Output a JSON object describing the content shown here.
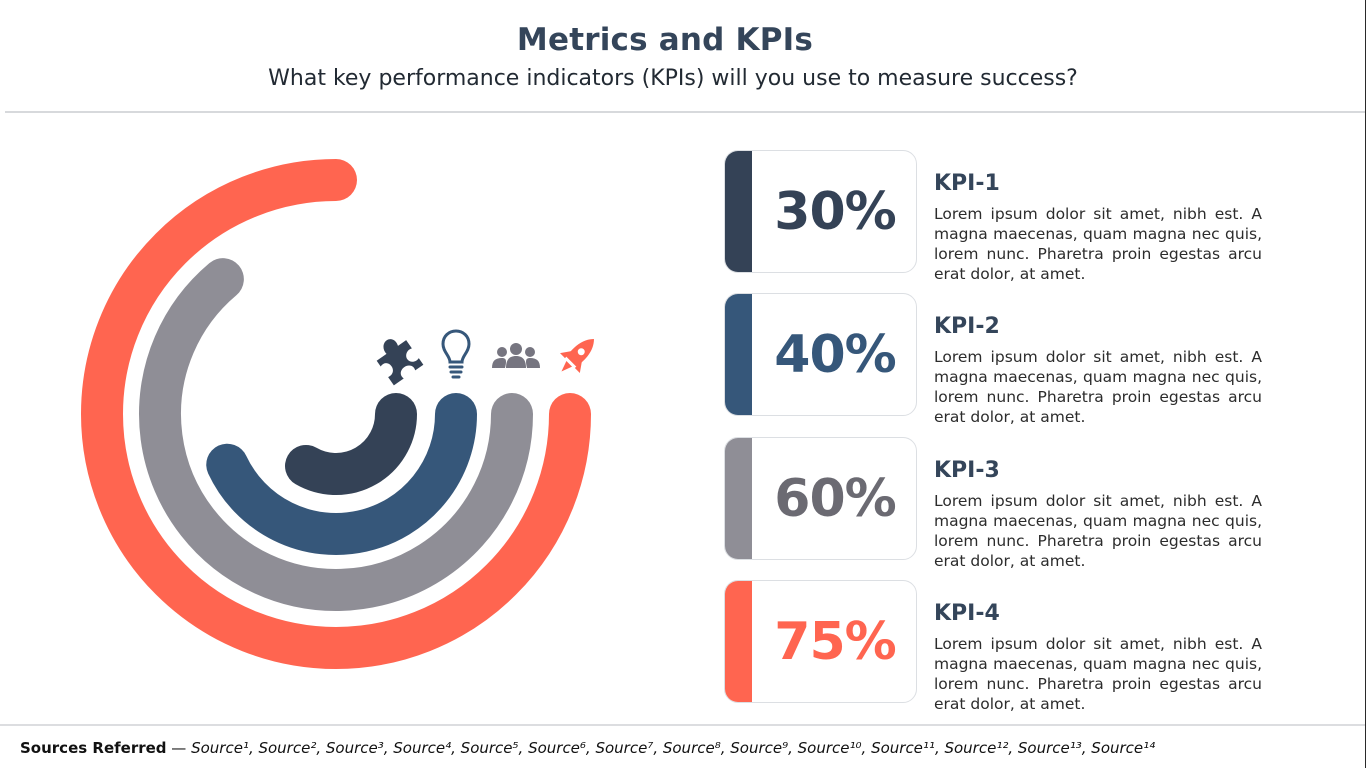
{
  "header": {
    "title": "Metrics and KPIs",
    "subtitle": "What key performance indicators (KPIs) will you use to measure success?"
  },
  "colors": {
    "kpi1": "#344256",
    "kpi2": "#36577a",
    "kpi3": "#8f8e96",
    "kpi4": "#ff6550"
  },
  "icons": [
    "puzzle-icon",
    "lightbulb-icon",
    "team-icon",
    "rocket-icon"
  ],
  "kpis": [
    {
      "value": "30%",
      "label": "KPI-1",
      "description": "Lorem ipsum dolor sit amet, nibh est. A magna maecenas, quam magna nec quis, lorem nunc. Pharetra proin egestas arcu erat dolor, at amet.",
      "level": 0.3
    },
    {
      "value": "40%",
      "label": "KPI-2",
      "description": "Lorem ipsum dolor sit amet, nibh est. A magna maecenas, quam magna nec quis, lorem nunc. Pharetra proin egestas arcu erat dolor, at amet.",
      "level": 0.4
    },
    {
      "value": "60%",
      "label": "KPI-3",
      "description": "Lorem ipsum dolor sit amet, nibh est. A magna maecenas, quam magna nec quis, lorem nunc. Pharetra proin egestas arcu erat dolor, at amet.",
      "level": 0.6
    },
    {
      "value": "75%",
      "label": "KPI-4",
      "description": "Lorem ipsum dolor sit amet, nibh est. A magna maecenas, quam magna nec quis, lorem nunc. Pharetra proin egestas arcu erat dolor, at amet.",
      "level": 0.75
    }
  ],
  "footer": {
    "label": "Sources Referred",
    "separator": " — ",
    "sources": "Source¹, Source², Source³, Source⁴, Source⁵, Source⁶, Source⁷, Source⁸, Source⁹, Source¹⁰, Source¹¹, Source¹², Source¹³, Source¹⁴"
  }
}
